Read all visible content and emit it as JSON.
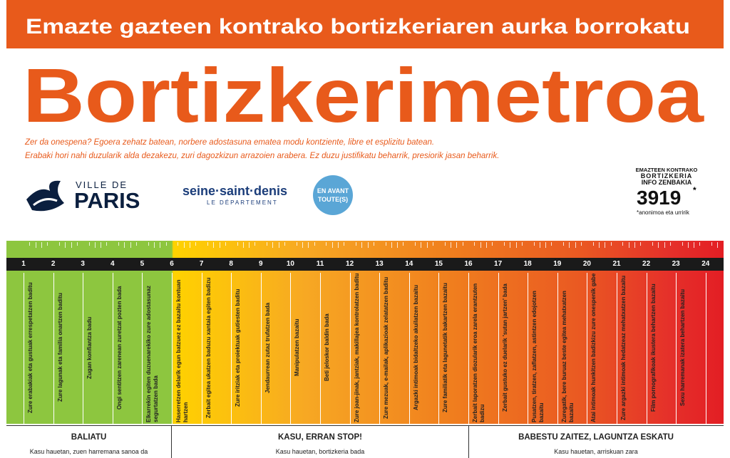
{
  "header": {
    "banner": "Emazte gazteen kontrako bortizkeriaren aurka borrokatu",
    "title": "Bortizkerimetroa",
    "intro": [
      "Zer da onespena? Egoera zehatz batean, norbere adostasuna ematea modu kontziente, libre et esplizitu batean.",
      "Erabaki hori nahi duzularik alda dezakezu, zuri dagozkizun arrazoien arabera. Ez duzu justifikatu beharrik, presiorik jasan beharrik."
    ]
  },
  "logos": {
    "paris": {
      "top": "VILLE DE",
      "name": "PARIS"
    },
    "seine": {
      "name": "seine·saint·denis",
      "sub": "LE DÉPARTEMENT"
    },
    "avant": {
      "line1": "EN AVANT",
      "line2": "TOUTE(S)"
    }
  },
  "info": {
    "line1": "EMAZTEEN KONTRAKO",
    "line2": "BORTIZKERIA",
    "line3": "INFO ZENBAKIA",
    "number": "3919",
    "star": "*",
    "note": "*anonimoa eta urririk"
  },
  "ruler": {
    "numbers": [
      "1",
      "2",
      "3",
      "4",
      "5",
      "6",
      "7",
      "8",
      "9",
      "10",
      "11",
      "12",
      "13",
      "14",
      "15",
      "16",
      "17",
      "18",
      "19",
      "20",
      "21",
      "22",
      "23",
      "24"
    ],
    "items": [
      "Zure erabakiak eta gustuak errespetatzen baditu",
      "Zure lagunak eta familia onartzen baditu",
      "Zugan konfiantza badu",
      "Ongi sentitzen zarenean zuretzat pozten bada",
      "Elkarrekin egiten duzuenarekiko zure adostasunaz segurtatzen bada",
      "Haserretzen delarik egun batzuez ez bazaitu kontuan hartzen",
      "Zerbait egitea ukatzen baduzu xantaia egiten badizu",
      "Zure iritziak eta proiektuak gutiesten baditu",
      "Jendaurrean zutaz trufatzen bada",
      "Manipulatzen bazaitu",
      "Beti jeloskor baldin bada",
      "Zure joan-jinak, jantziak, makillajea kontrolatzen baditu",
      "Zure mezuak, e-mailak, aplikazioak zelatatzen baditu",
      "Argazki intimoak bidaltzeko akuilatzen bazaitu",
      "Zure familiatik eta lagunetatik bakartzen bazaitu",
      "Zerbait laporatzen diozularik eroa zarela erantzuten badizu",
      "Zerbait gustuko ez duelarik 'sutan jartzen' bada",
      "Pusatzen, tiratzen, zaflatzen, astintzen edojotzen bazaitu",
      "Zuregatik, bere buruaz beste egitea mehatxatzen bazaitu",
      "Atai intimoak hunkitzen badizkizu zure onespenik gabe",
      "Zure argazki intimoak hedatzeaz mehatxatzen bazaitu",
      "Film pornografikoak ikustera behartzen bazaitu",
      "Sexu harremanak izatera behartzen bazaitu"
    ]
  },
  "zones": [
    {
      "title": "BALIATU",
      "subtitle": "Kasu hauetan, zuen harremana sanoa da"
    },
    {
      "title": "KASU, ERRAN STOP!",
      "subtitle": "Kasu hauetan, bortizkeria bada"
    },
    {
      "title": "BABESTU ZAITEZ, LAGUNTZA ESKATU",
      "subtitle": "Kasu hauetan, arriskuan zara"
    }
  ]
}
